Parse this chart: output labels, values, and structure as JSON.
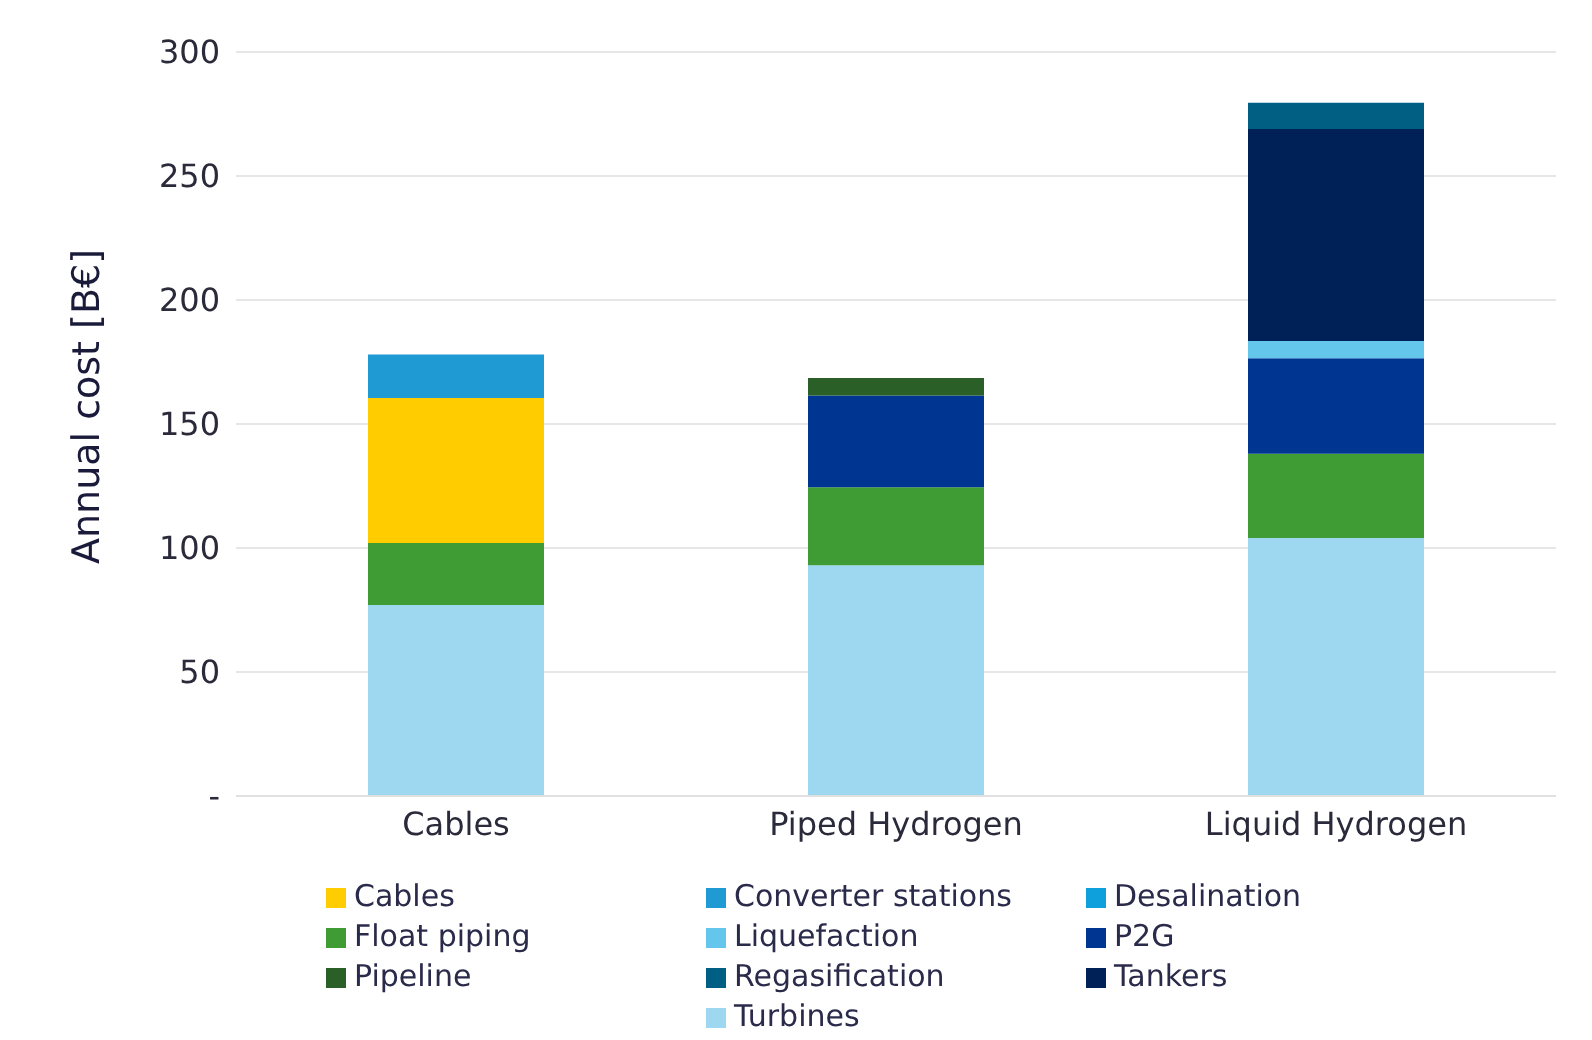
{
  "chart_data": {
    "type": "bar",
    "stacked": true,
    "ylabel": "Annual cost  [B€]",
    "categories": [
      "Cables",
      "Piped Hydrogen",
      "Liquid Hydrogen"
    ],
    "series": [
      {
        "name": "Turbines",
        "color": "#9dd7f0",
        "values": [
          77,
          93,
          104
        ]
      },
      {
        "name": "Float piping",
        "color": "#3f9c35",
        "values": [
          25,
          31.5,
          34
        ]
      },
      {
        "name": "P2G",
        "color": "#003591",
        "values": [
          0,
          37,
          38.5
        ]
      },
      {
        "name": "Desalination",
        "color": "#0ea0dc",
        "values": [
          0,
          0,
          0
        ]
      },
      {
        "name": "Liquefaction",
        "color": "#65c6ec",
        "values": [
          0,
          0,
          7
        ]
      },
      {
        "name": "Cables",
        "color": "#ffcc00",
        "values": [
          58.5,
          0,
          0
        ]
      },
      {
        "name": "Converter stations",
        "color": "#1f9ad2",
        "values": [
          17.5,
          0,
          0
        ]
      },
      {
        "name": "Pipeline",
        "color": "#2a6027",
        "values": [
          0,
          7,
          0
        ]
      },
      {
        "name": "Tankers",
        "color": "#002157",
        "values": [
          0,
          0,
          85.5
        ]
      },
      {
        "name": "Regasification",
        "color": "#005f82",
        "values": [
          0,
          0,
          10.5
        ]
      }
    ],
    "ylim": [
      0,
      300
    ],
    "yticks": [
      {
        "value": 0,
        "label": "-"
      },
      50,
      100,
      150,
      200,
      250,
      300
    ],
    "grid": "y",
    "legend": "bottom"
  }
}
